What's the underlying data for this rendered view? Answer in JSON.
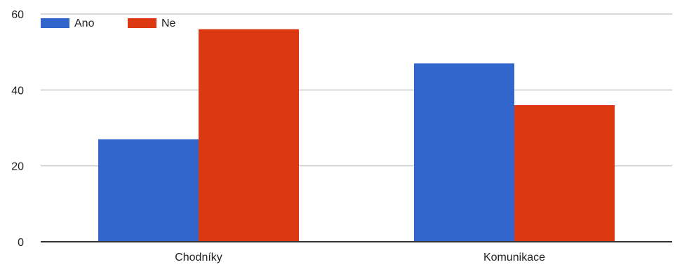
{
  "chart_data": {
    "type": "bar",
    "categories": [
      "Chodníky",
      "Komunikace"
    ],
    "series": [
      {
        "name": "Ano",
        "values": [
          27,
          47
        ],
        "color": "#3366cc"
      },
      {
        "name": "Ne",
        "values": [
          56,
          36
        ],
        "color": "#dc3912"
      }
    ],
    "ylim": [
      0,
      60
    ],
    "yticks": [
      0,
      20,
      40,
      60
    ],
    "title": "",
    "xlabel": "",
    "ylabel": "",
    "grid": true,
    "legend_position": "top-left"
  }
}
